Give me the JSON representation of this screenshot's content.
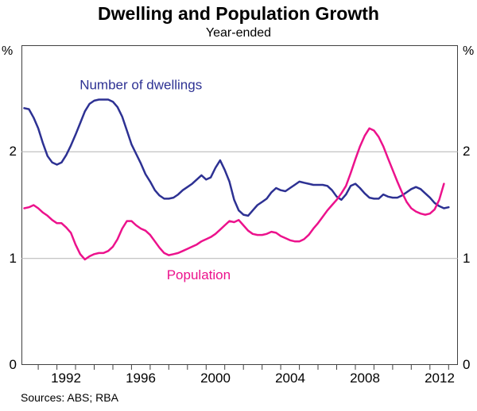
{
  "title": "Dwelling and Population Growth",
  "subtitle": "Year-ended",
  "source_note": "Sources: ABS; RBA",
  "axes": {
    "unit_label": "%",
    "y_min": 0,
    "y_max": 3,
    "y_tick_labels": [
      0,
      1,
      2
    ],
    "grid_lines": [
      1,
      2
    ],
    "x_start": 1990.1,
    "x_end": 2013.5,
    "x_tick_first_year": 1991,
    "x_tick_last_year": 2013,
    "x_labels": [
      1992,
      1996,
      2000,
      2004,
      2008,
      2012
    ]
  },
  "colors": {
    "dwellings": "#2d3193",
    "population": "#ec128c",
    "grid": "#b3b3b3",
    "frame": "#404040",
    "text": "#000000"
  },
  "chart_data": {
    "type": "line",
    "title": "Dwelling and Population Growth",
    "subtitle": "Year-ended",
    "ylabel": "%",
    "ylim": [
      0,
      3
    ],
    "xlim": [
      1990.1,
      2013.5
    ],
    "grid": "horizontal gridlines at 1 and 2",
    "legend": "in-plot colored labels",
    "series": [
      {
        "name": "Number of dwellings",
        "color": "#2d3193",
        "label_anchor": {
          "x": 1996.5,
          "y": 2.63
        },
        "points": [
          [
            1990.25,
            2.41
          ],
          [
            1990.5,
            2.4
          ],
          [
            1990.75,
            2.32
          ],
          [
            1991.0,
            2.22
          ],
          [
            1991.25,
            2.08
          ],
          [
            1991.5,
            1.96
          ],
          [
            1991.75,
            1.9
          ],
          [
            1992.0,
            1.88
          ],
          [
            1992.25,
            1.9
          ],
          [
            1992.5,
            1.97
          ],
          [
            1992.75,
            2.06
          ],
          [
            1993.0,
            2.16
          ],
          [
            1993.25,
            2.27
          ],
          [
            1993.5,
            2.38
          ],
          [
            1993.75,
            2.45
          ],
          [
            1994.0,
            2.48
          ],
          [
            1994.25,
            2.49
          ],
          [
            1994.5,
            2.49
          ],
          [
            1994.75,
            2.49
          ],
          [
            1995.0,
            2.47
          ],
          [
            1995.25,
            2.42
          ],
          [
            1995.5,
            2.33
          ],
          [
            1995.75,
            2.2
          ],
          [
            1996.0,
            2.07
          ],
          [
            1996.25,
            1.98
          ],
          [
            1996.5,
            1.89
          ],
          [
            1996.75,
            1.79
          ],
          [
            1997.0,
            1.72
          ],
          [
            1997.25,
            1.64
          ],
          [
            1997.5,
            1.59
          ],
          [
            1997.75,
            1.56
          ],
          [
            1998.0,
            1.56
          ],
          [
            1998.25,
            1.57
          ],
          [
            1998.5,
            1.6
          ],
          [
            1998.75,
            1.64
          ],
          [
            1999.0,
            1.67
          ],
          [
            1999.25,
            1.7
          ],
          [
            1999.5,
            1.74
          ],
          [
            1999.75,
            1.78
          ],
          [
            2000.0,
            1.74
          ],
          [
            2000.25,
            1.76
          ],
          [
            2000.5,
            1.85
          ],
          [
            2000.75,
            1.92
          ],
          [
            2001.0,
            1.83
          ],
          [
            2001.25,
            1.72
          ],
          [
            2001.5,
            1.55
          ],
          [
            2001.75,
            1.45
          ],
          [
            2002.0,
            1.41
          ],
          [
            2002.25,
            1.4
          ],
          [
            2002.5,
            1.45
          ],
          [
            2002.75,
            1.5
          ],
          [
            2003.0,
            1.53
          ],
          [
            2003.25,
            1.56
          ],
          [
            2003.5,
            1.62
          ],
          [
            2003.75,
            1.66
          ],
          [
            2004.0,
            1.64
          ],
          [
            2004.25,
            1.63
          ],
          [
            2004.5,
            1.66
          ],
          [
            2004.75,
            1.69
          ],
          [
            2005.0,
            1.72
          ],
          [
            2005.25,
            1.71
          ],
          [
            2005.5,
            1.7
          ],
          [
            2005.75,
            1.69
          ],
          [
            2006.0,
            1.69
          ],
          [
            2006.25,
            1.69
          ],
          [
            2006.5,
            1.68
          ],
          [
            2006.75,
            1.64
          ],
          [
            2007.0,
            1.58
          ],
          [
            2007.25,
            1.55
          ],
          [
            2007.5,
            1.6
          ],
          [
            2007.75,
            1.68
          ],
          [
            2008.0,
            1.7
          ],
          [
            2008.25,
            1.66
          ],
          [
            2008.5,
            1.61
          ],
          [
            2008.75,
            1.57
          ],
          [
            2009.0,
            1.56
          ],
          [
            2009.25,
            1.56
          ],
          [
            2009.5,
            1.6
          ],
          [
            2009.75,
            1.58
          ],
          [
            2010.0,
            1.57
          ],
          [
            2010.25,
            1.57
          ],
          [
            2010.5,
            1.59
          ],
          [
            2010.75,
            1.62
          ],
          [
            2011.0,
            1.65
          ],
          [
            2011.25,
            1.67
          ],
          [
            2011.5,
            1.65
          ],
          [
            2011.75,
            1.61
          ],
          [
            2012.0,
            1.57
          ],
          [
            2012.25,
            1.52
          ],
          [
            2012.5,
            1.49
          ],
          [
            2012.75,
            1.47
          ],
          [
            2013.0,
            1.48
          ]
        ]
      },
      {
        "name": "Population",
        "color": "#ec128c",
        "label_anchor": {
          "x": 1999.6,
          "y": 0.85
        },
        "points": [
          [
            1990.25,
            1.47
          ],
          [
            1990.5,
            1.48
          ],
          [
            1990.75,
            1.5
          ],
          [
            1991.0,
            1.47
          ],
          [
            1991.25,
            1.43
          ],
          [
            1991.5,
            1.4
          ],
          [
            1991.75,
            1.36
          ],
          [
            1992.0,
            1.33
          ],
          [
            1992.25,
            1.33
          ],
          [
            1992.5,
            1.29
          ],
          [
            1992.75,
            1.24
          ],
          [
            1993.0,
            1.13
          ],
          [
            1993.25,
            1.04
          ],
          [
            1993.5,
            0.99
          ],
          [
            1993.75,
            1.02
          ],
          [
            1994.0,
            1.04
          ],
          [
            1994.25,
            1.05
          ],
          [
            1994.5,
            1.05
          ],
          [
            1994.75,
            1.07
          ],
          [
            1995.0,
            1.11
          ],
          [
            1995.25,
            1.18
          ],
          [
            1995.5,
            1.28
          ],
          [
            1995.75,
            1.35
          ],
          [
            1996.0,
            1.35
          ],
          [
            1996.25,
            1.31
          ],
          [
            1996.5,
            1.28
          ],
          [
            1996.75,
            1.26
          ],
          [
            1997.0,
            1.22
          ],
          [
            1997.25,
            1.16
          ],
          [
            1997.5,
            1.1
          ],
          [
            1997.75,
            1.05
          ],
          [
            1998.0,
            1.03
          ],
          [
            1998.25,
            1.04
          ],
          [
            1998.5,
            1.05
          ],
          [
            1998.75,
            1.07
          ],
          [
            1999.0,
            1.09
          ],
          [
            1999.25,
            1.11
          ],
          [
            1999.5,
            1.13
          ],
          [
            1999.75,
            1.16
          ],
          [
            2000.0,
            1.18
          ],
          [
            2000.25,
            1.2
          ],
          [
            2000.5,
            1.23
          ],
          [
            2000.75,
            1.27
          ],
          [
            2001.0,
            1.31
          ],
          [
            2001.25,
            1.35
          ],
          [
            2001.5,
            1.34
          ],
          [
            2001.75,
            1.36
          ],
          [
            2002.0,
            1.31
          ],
          [
            2002.25,
            1.26
          ],
          [
            2002.5,
            1.23
          ],
          [
            2002.75,
            1.22
          ],
          [
            2003.0,
            1.22
          ],
          [
            2003.25,
            1.23
          ],
          [
            2003.5,
            1.25
          ],
          [
            2003.75,
            1.24
          ],
          [
            2004.0,
            1.21
          ],
          [
            2004.25,
            1.19
          ],
          [
            2004.5,
            1.17
          ],
          [
            2004.75,
            1.16
          ],
          [
            2005.0,
            1.16
          ],
          [
            2005.25,
            1.18
          ],
          [
            2005.5,
            1.22
          ],
          [
            2005.75,
            1.28
          ],
          [
            2006.0,
            1.33
          ],
          [
            2006.25,
            1.39
          ],
          [
            2006.5,
            1.45
          ],
          [
            2006.75,
            1.5
          ],
          [
            2007.0,
            1.55
          ],
          [
            2007.25,
            1.61
          ],
          [
            2007.5,
            1.68
          ],
          [
            2007.75,
            1.8
          ],
          [
            2008.0,
            1.93
          ],
          [
            2008.25,
            2.05
          ],
          [
            2008.5,
            2.15
          ],
          [
            2008.75,
            2.22
          ],
          [
            2009.0,
            2.2
          ],
          [
            2009.25,
            2.14
          ],
          [
            2009.5,
            2.05
          ],
          [
            2009.75,
            1.94
          ],
          [
            2010.0,
            1.83
          ],
          [
            2010.25,
            1.72
          ],
          [
            2010.5,
            1.62
          ],
          [
            2010.75,
            1.53
          ],
          [
            2011.0,
            1.47
          ],
          [
            2011.25,
            1.44
          ],
          [
            2011.5,
            1.42
          ],
          [
            2011.75,
            1.41
          ],
          [
            2012.0,
            1.42
          ],
          [
            2012.25,
            1.46
          ],
          [
            2012.5,
            1.55
          ],
          [
            2012.75,
            1.7
          ]
        ]
      }
    ]
  }
}
